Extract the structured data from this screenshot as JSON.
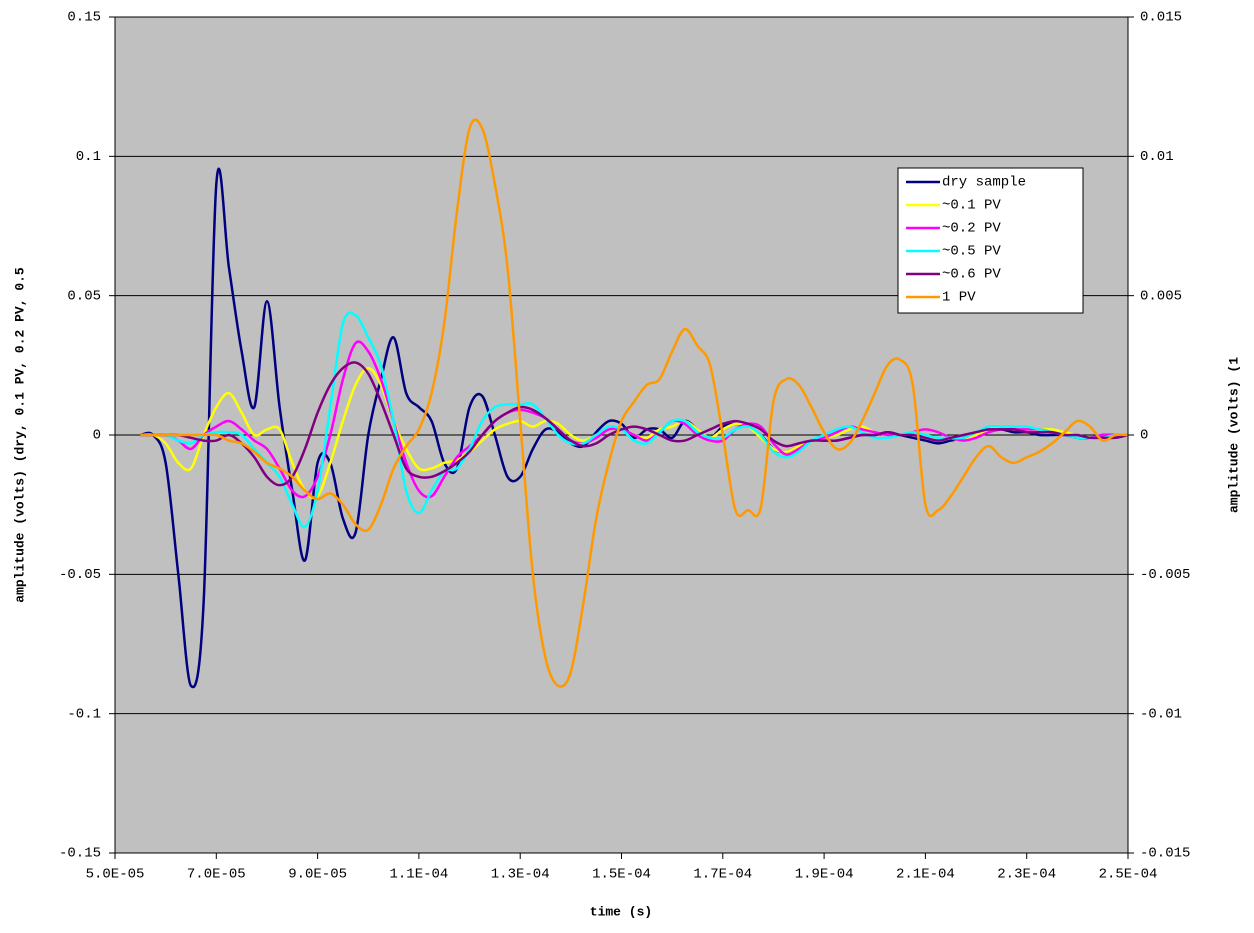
{
  "chart_data": {
    "type": "line",
    "x_label": "time (s)",
    "y_label": "amplitude (volts) (dry, 0.1 PV, 0.2 PV, 0.5",
    "y2_label": "amplitude (volts) (1",
    "xlim": [
      5e-05,
      0.00025
    ],
    "xticks": [
      {
        "value": 5e-05,
        "label": "5.0E-05"
      },
      {
        "value": 7e-05,
        "label": "7.0E-05"
      },
      {
        "value": 9e-05,
        "label": "9.0E-05"
      },
      {
        "value": 0.00011,
        "label": "1.1E-04"
      },
      {
        "value": 0.00013,
        "label": "1.3E-04"
      },
      {
        "value": 0.00015,
        "label": "1.5E-04"
      },
      {
        "value": 0.00017,
        "label": "1.7E-04"
      },
      {
        "value": 0.00019,
        "label": "1.9E-04"
      },
      {
        "value": 0.00021,
        "label": "2.1E-04"
      },
      {
        "value": 0.00023,
        "label": "2.3E-04"
      },
      {
        "value": 0.00025,
        "label": "2.5E-04"
      }
    ],
    "ylim": [
      -0.15,
      0.15
    ],
    "yticks": [
      0.15,
      0.1,
      0.05,
      0,
      -0.05,
      -0.1,
      -0.15
    ],
    "y2lim": [
      -0.015,
      0.015
    ],
    "y2ticks": [
      0.015,
      0.01,
      0.005,
      0,
      -0.005,
      -0.01,
      -0.015
    ],
    "grid": true,
    "legend": "top-right",
    "x": [
      5.5e-05,
      5.75e-05,
      6e-05,
      6.25e-05,
      6.5e-05,
      6.75e-05,
      7e-05,
      7.25e-05,
      7.5e-05,
      7.75e-05,
      8e-05,
      8.25e-05,
      8.5e-05,
      8.75e-05,
      9e-05,
      9.25e-05,
      9.5e-05,
      9.75e-05,
      0.0001,
      0.0001025,
      0.000105,
      0.0001075,
      0.00011,
      0.0001125,
      0.000115,
      0.0001175,
      0.00012,
      0.0001225,
      0.000125,
      0.0001275,
      0.00013,
      0.0001325,
      0.000135,
      0.0001375,
      0.00014,
      0.0001425,
      0.000145,
      0.0001475,
      0.00015,
      0.0001525,
      0.000155,
      0.0001575,
      0.00016,
      0.0001625,
      0.000165,
      0.0001675,
      0.00017,
      0.0001725,
      0.000175,
      0.0001775,
      0.00018,
      0.0001825,
      0.000185,
      0.0001875,
      0.00019,
      0.0001925,
      0.000195,
      0.0001975,
      0.0002,
      0.0002025,
      0.000205,
      0.0002075,
      0.00021,
      0.0002125,
      0.000215,
      0.0002175,
      0.00022,
      0.0002225,
      0.000225,
      0.0002275,
      0.00023,
      0.0002325,
      0.000235,
      0.0002375,
      0.00024,
      0.0002425,
      0.000245,
      0.0002475,
      0.00025
    ],
    "series": [
      {
        "name": "dry sample",
        "color": "#000080",
        "values": [
          0,
          0,
          -0.01,
          -0.05,
          -0.09,
          -0.06,
          0.09,
          0.06,
          0.03,
          0.01,
          0.048,
          0.01,
          -0.02,
          -0.045,
          -0.01,
          -0.01,
          -0.03,
          -0.035,
          0.0,
          0.02,
          0.035,
          0.015,
          0.01,
          0.005,
          -0.01,
          -0.012,
          0.01,
          0.014,
          0.0,
          -0.015,
          -0.015,
          -0.005,
          0.002,
          0.001,
          -0.003,
          -0.004,
          0.001,
          0.005,
          0.004,
          -0.001,
          0.002,
          0.002,
          -0.001,
          0.005,
          0.002,
          -0.001,
          0.003,
          0.004,
          0.003,
          0.0,
          -0.005,
          -0.006,
          -0.004,
          -0.002,
          -0.002,
          -0.002,
          -0.001,
          0.0,
          0.0,
          0.001,
          0.0,
          -0.001,
          -0.002,
          -0.003,
          -0.002,
          -0.001,
          0.001,
          0.002,
          0.002,
          0.001,
          0.001,
          0.0,
          0.0,
          0.0,
          -0.001,
          -0.001,
          0.0,
          0.0,
          0.0
        ]
      },
      {
        "name": "~0.1 PV",
        "color": "#ffff00",
        "values": [
          0,
          0,
          -0.003,
          -0.01,
          -0.012,
          0.0,
          0.01,
          0.015,
          0.008,
          0.0,
          0.002,
          0.002,
          -0.01,
          -0.02,
          -0.022,
          -0.01,
          0.005,
          0.018,
          0.024,
          0.018,
          0.005,
          -0.005,
          -0.012,
          -0.012,
          -0.01,
          -0.009,
          -0.006,
          -0.002,
          0.002,
          0.004,
          0.005,
          0.003,
          0.005,
          0.004,
          0.0,
          -0.002,
          0.0,
          0.002,
          0.002,
          0.0,
          -0.001,
          0.002,
          0.003,
          0.005,
          0.002,
          -0.001,
          0.002,
          0.004,
          0.003,
          -0.001,
          -0.005,
          -0.006,
          -0.004,
          -0.002,
          -0.001,
          0.0,
          0.002,
          0.003,
          0.001,
          0.0,
          0.0,
          0.001,
          0.002,
          0.001,
          -0.001,
          -0.002,
          0.0,
          0.002,
          0.003,
          0.002,
          0.002,
          0.002,
          0.002,
          0.001,
          0.0,
          -0.001,
          -0.001,
          0.0,
          0.0
        ]
      },
      {
        "name": "~0.2 PV",
        "color": "#ff00ff",
        "values": [
          0,
          0,
          0,
          -0.002,
          -0.005,
          0.0,
          0.003,
          0.005,
          0.002,
          -0.002,
          -0.005,
          -0.012,
          -0.02,
          -0.022,
          -0.015,
          0.0,
          0.02,
          0.033,
          0.03,
          0.02,
          0.005,
          -0.01,
          -0.02,
          -0.022,
          -0.015,
          -0.008,
          -0.004,
          0.0,
          0.005,
          0.008,
          0.009,
          0.008,
          0.006,
          0.002,
          -0.002,
          -0.003,
          -0.001,
          0.002,
          0.002,
          0.0,
          -0.002,
          0.001,
          0.005,
          0.004,
          0.0,
          -0.002,
          -0.002,
          0.002,
          0.004,
          0.003,
          -0.003,
          -0.007,
          -0.005,
          -0.002,
          -0.001,
          0.001,
          0.003,
          0.002,
          0.001,
          0.0,
          0.0,
          0.001,
          0.002,
          0.001,
          -0.001,
          -0.002,
          -0.001,
          0.001,
          0.002,
          0.002,
          0.002,
          0.002,
          0.001,
          0.0,
          -0.001,
          -0.001,
          0.0,
          0.0,
          0.0
        ]
      },
      {
        "name": "~0.5 PV",
        "color": "#00ffff",
        "values": [
          0,
          0,
          0,
          -0.002,
          -0.003,
          0.0,
          0.001,
          0.001,
          0.0,
          -0.005,
          -0.01,
          -0.015,
          -0.025,
          -0.033,
          -0.02,
          0.01,
          0.04,
          0.043,
          0.035,
          0.025,
          0.005,
          -0.02,
          -0.028,
          -0.02,
          -0.013,
          -0.012,
          -0.005,
          0.005,
          0.01,
          0.011,
          0.011,
          0.011,
          0.006,
          0.0,
          -0.003,
          -0.003,
          0.0,
          0.003,
          0.002,
          -0.002,
          -0.003,
          0.001,
          0.005,
          0.005,
          0.001,
          -0.001,
          -0.001,
          0.002,
          0.003,
          0.0,
          -0.006,
          -0.008,
          -0.006,
          -0.002,
          0.0,
          0.002,
          0.003,
          0.001,
          -0.001,
          -0.001,
          0.0,
          0.001,
          0.0,
          -0.001,
          -0.001,
          -0.001,
          0.001,
          0.003,
          0.003,
          0.003,
          0.003,
          0.002,
          0.001,
          0.0,
          -0.001,
          -0.001,
          -0.001,
          0.0,
          0.0
        ]
      },
      {
        "name": "~0.6 PV",
        "color": "#800080",
        "values": [
          0,
          0,
          0,
          0,
          -0.001,
          -0.002,
          -0.002,
          0.0,
          -0.003,
          -0.008,
          -0.015,
          -0.018,
          -0.015,
          -0.005,
          0.008,
          0.018,
          0.024,
          0.026,
          0.022,
          0.012,
          0.0,
          -0.012,
          -0.015,
          -0.015,
          -0.013,
          -0.01,
          -0.006,
          0.0,
          0.005,
          0.008,
          0.01,
          0.009,
          0.006,
          0.002,
          -0.002,
          -0.004,
          -0.003,
          0.0,
          0.002,
          0.003,
          0.002,
          0.0,
          -0.002,
          -0.002,
          0.0,
          0.002,
          0.004,
          0.005,
          0.004,
          0.002,
          -0.002,
          -0.004,
          -0.003,
          -0.002,
          -0.002,
          -0.002,
          -0.001,
          0.0,
          0.0,
          0.001,
          0.0,
          0.0,
          -0.001,
          -0.002,
          -0.001,
          0.0,
          0.001,
          0.002,
          0.002,
          0.002,
          0.001,
          0.001,
          0.001,
          0.0,
          0.0,
          -0.001,
          -0.001,
          -0.001,
          0.0
        ]
      },
      {
        "name": "1 PV",
        "color": "#ff9900",
        "axis": "y2",
        "values": [
          0,
          0,
          0,
          0,
          0,
          0,
          0,
          -0.0002,
          -0.0003,
          -0.0006,
          -0.001,
          -0.0012,
          -0.0015,
          -0.002,
          -0.0023,
          -0.0021,
          -0.0025,
          -0.0032,
          -0.0034,
          -0.0025,
          -0.0012,
          -0.0004,
          0.0002,
          0.0015,
          0.004,
          0.008,
          0.011,
          0.011,
          0.009,
          0.006,
          0.0005,
          -0.005,
          -0.008,
          -0.009,
          -0.0085,
          -0.006,
          -0.003,
          -0.001,
          0.0005,
          0.0012,
          0.0018,
          0.002,
          0.003,
          0.0038,
          0.0032,
          0.0025,
          0.0,
          -0.0027,
          -0.0027,
          -0.0026,
          0.0012,
          0.002,
          0.0018,
          0.001,
          0.0001,
          -0.0005,
          -0.0003,
          0.0005,
          0.0015,
          0.0025,
          0.0027,
          0.0018,
          -0.0025,
          -0.0027,
          -0.0022,
          -0.0015,
          -0.0008,
          -0.0004,
          -0.0008,
          -0.001,
          -0.0008,
          -0.0006,
          -0.0003,
          0.0001,
          0.0005,
          0.0003,
          -0.0002,
          0.0,
          0.0
        ]
      }
    ]
  }
}
